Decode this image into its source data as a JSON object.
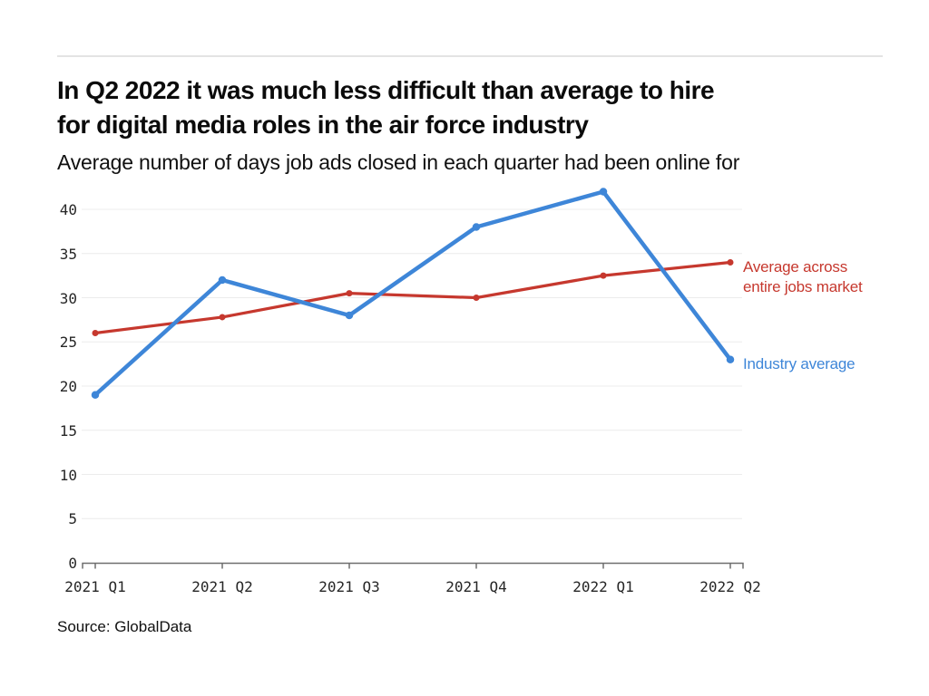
{
  "page": {
    "title": "In Q2 2022 it was much less difficult than average to hire\nfor digital media roles in the air force industry",
    "subtitle": "Average number of days job ads closed in each quarter had been online for",
    "source": "Source: GlobalData"
  },
  "colors": {
    "industry_blue": "#3e86d8",
    "market_red": "#c6382e",
    "gridline": "#ececec",
    "axis": "#6e6e6e",
    "tick_text": "#262626",
    "divider": "#e3e3e3"
  },
  "chart_data": {
    "type": "line",
    "title": "In Q2 2022 it was much less difficult than average to hire for digital media roles in the air force industry",
    "subtitle": "Average number of days job ads closed in each quarter had been online for",
    "categories": [
      "2021 Q1",
      "2021 Q2",
      "2021 Q3",
      "2021 Q4",
      "2022 Q1",
      "2022 Q2"
    ],
    "series": [
      {
        "name": "Average across entire jobs market",
        "legend_lines": [
          "Average across",
          "entire jobs market"
        ],
        "color": "#c6382e",
        "values": [
          26,
          27.8,
          30.5,
          30,
          32.5,
          34
        ]
      },
      {
        "name": "Industry average",
        "legend_lines": [
          "Industry average"
        ],
        "color": "#3e86d8",
        "values": [
          19,
          32,
          28,
          38,
          42,
          23
        ]
      }
    ],
    "y_ticks": [
      0,
      5,
      10,
      15,
      20,
      25,
      30,
      35,
      40
    ],
    "ylim": [
      0,
      43
    ],
    "xlabel": "",
    "ylabel": "",
    "grid": "horizontal",
    "legend_position": "right of line ends",
    "source": "Source: GlobalData"
  }
}
